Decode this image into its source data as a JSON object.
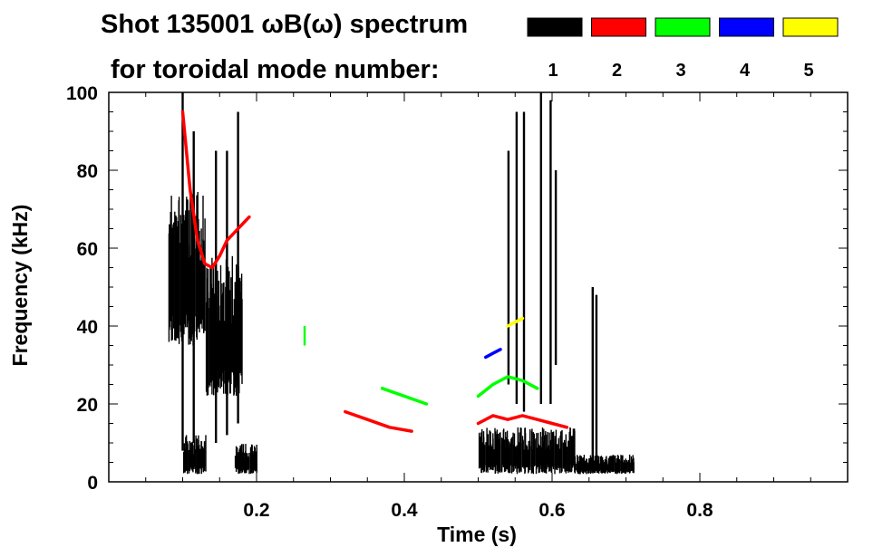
{
  "chart_data": {
    "type": "spectrogram",
    "title_line1": "Shot 135001 ωB(ω) spectrum",
    "title_line2": "for toroidal mode number:",
    "xlabel": "Time (s)",
    "ylabel": "Frequency (kHz)",
    "xlim": [
      0.0,
      1.0
    ],
    "ylim": [
      0,
      100
    ],
    "xticks": [
      0.2,
      0.4,
      0.6,
      0.8
    ],
    "xtick_labels": [
      "0.2",
      "0.4",
      "0.6",
      "0.8"
    ],
    "yticks": [
      0,
      20,
      40,
      60,
      80,
      100
    ],
    "ytick_labels": [
      "0",
      "20",
      "40",
      "60",
      "80",
      "100"
    ],
    "legend": [
      {
        "label": "1",
        "color": "#000000"
      },
      {
        "label": "2",
        "color": "#ff0000"
      },
      {
        "label": "3",
        "color": "#00ff00"
      },
      {
        "label": "4",
        "color": "#0000ff"
      },
      {
        "label": "5",
        "color": "#ffff00"
      }
    ],
    "series": [
      {
        "mode": "1",
        "color": "#000000",
        "features": [
          {
            "kind": "blob",
            "t": [
              0.08,
              0.13
            ],
            "f": [
              35,
              75
            ]
          },
          {
            "kind": "blob",
            "t": [
              0.13,
              0.18
            ],
            "f": [
              22,
              58
            ]
          },
          {
            "kind": "blob",
            "t": [
              0.1,
              0.13
            ],
            "f": [
              2,
              12
            ]
          },
          {
            "kind": "blob",
            "t": [
              0.17,
              0.2
            ],
            "f": [
              2,
              10
            ]
          },
          {
            "kind": "blob",
            "t": [
              0.5,
              0.63
            ],
            "f": [
              2,
              14
            ]
          },
          {
            "kind": "blob",
            "t": [
              0.63,
              0.71
            ],
            "f": [
              2,
              7
            ]
          },
          {
            "kind": "streak",
            "t": 0.1,
            "f": [
              8,
              100
            ]
          },
          {
            "kind": "streak",
            "t": 0.115,
            "f": [
              10,
              90
            ]
          },
          {
            "kind": "streak",
            "t": 0.145,
            "f": [
              10,
              85
            ]
          },
          {
            "kind": "streak",
            "t": 0.16,
            "f": [
              12,
              85
            ]
          },
          {
            "kind": "streak",
            "t": 0.175,
            "f": [
              15,
              95
            ]
          },
          {
            "kind": "streak",
            "t": 0.552,
            "f": [
              20,
              95
            ]
          },
          {
            "kind": "streak",
            "t": 0.562,
            "f": [
              18,
              95
            ]
          },
          {
            "kind": "streak",
            "t": 0.541,
            "f": [
              25,
              85
            ]
          },
          {
            "kind": "streak",
            "t": 0.585,
            "f": [
              20,
              100
            ]
          },
          {
            "kind": "streak",
            "t": 0.598,
            "f": [
              20,
              98
            ]
          },
          {
            "kind": "streak",
            "t": 0.605,
            "f": [
              30,
              80
            ]
          },
          {
            "kind": "streak",
            "t": 0.655,
            "f": [
              5,
              50
            ]
          },
          {
            "kind": "streak",
            "t": 0.66,
            "f": [
              5,
              48
            ]
          }
        ]
      },
      {
        "mode": "2",
        "color": "#ff0000",
        "features": [
          {
            "kind": "curve",
            "t": [
              0.1,
              0.11,
              0.12,
              0.13,
              0.14,
              0.15,
              0.16,
              0.17,
              0.18,
              0.19
            ],
            "f": [
              95,
              75,
              62,
              56,
              55,
              58,
              62,
              64,
              66,
              68
            ]
          },
          {
            "kind": "curve",
            "t": [
              0.5,
              0.52,
              0.54,
              0.56,
              0.58,
              0.6,
              0.62
            ],
            "f": [
              15,
              17,
              16,
              17,
              16,
              15,
              14
            ]
          },
          {
            "kind": "curve",
            "t": [
              0.32,
              0.35,
              0.38,
              0.41
            ],
            "f": [
              18,
              16,
              14,
              13
            ]
          }
        ]
      },
      {
        "mode": "3",
        "color": "#00ff00",
        "features": [
          {
            "kind": "curve",
            "t": [
              0.5,
              0.52,
              0.54,
              0.56,
              0.58
            ],
            "f": [
              22,
              25,
              27,
              26,
              24
            ]
          },
          {
            "kind": "curve",
            "t": [
              0.37,
              0.4,
              0.43
            ],
            "f": [
              24,
              22,
              20
            ]
          },
          {
            "kind": "streak",
            "t": 0.265,
            "f": [
              35,
              40
            ]
          }
        ]
      },
      {
        "mode": "4",
        "color": "#0000ff",
        "features": [
          {
            "kind": "curve",
            "t": [
              0.51,
              0.52,
              0.53
            ],
            "f": [
              32,
              33,
              34
            ]
          }
        ]
      },
      {
        "mode": "5",
        "color": "#ffff00",
        "features": [
          {
            "kind": "curve",
            "t": [
              0.54,
              0.55,
              0.56
            ],
            "f": [
              40,
              41,
              42
            ]
          }
        ]
      }
    ]
  }
}
